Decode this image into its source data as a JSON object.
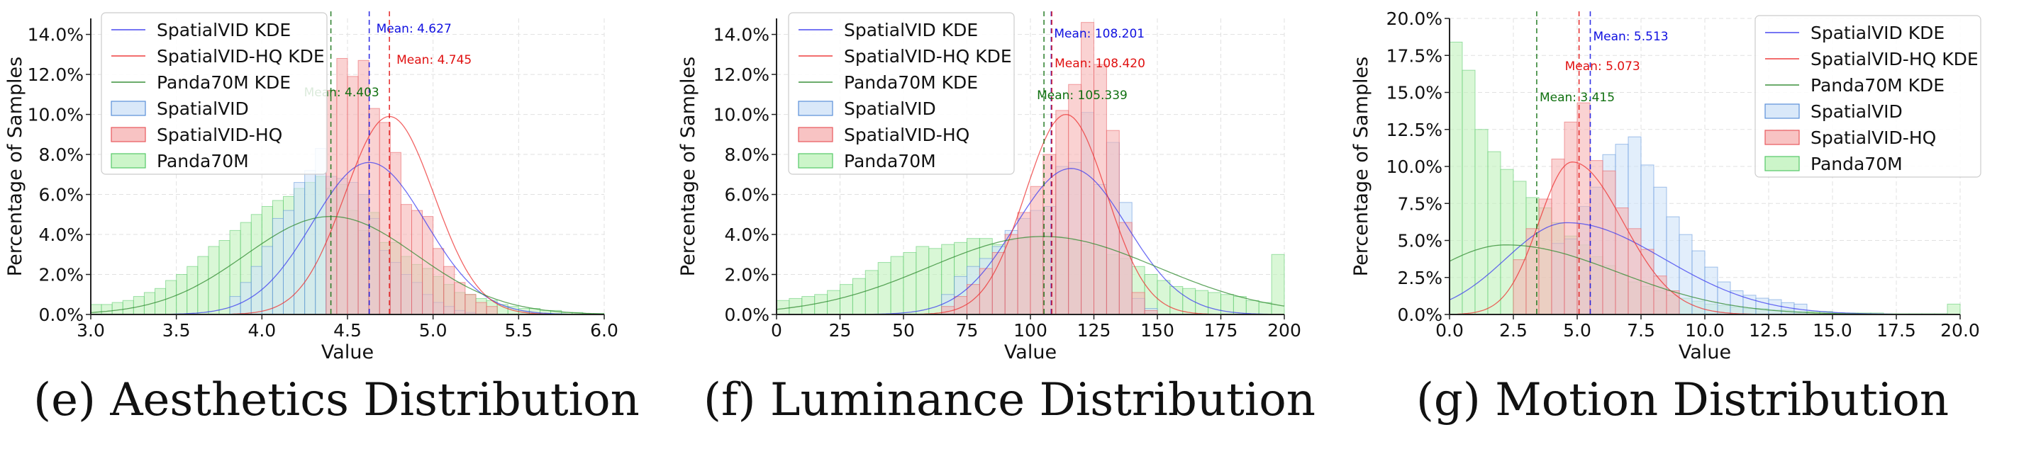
{
  "charts": [
    {
      "caption": "(e) Aesthetics Distribution",
      "chart_data": {
        "type": "histogram",
        "title": "",
        "xlabel": "Value",
        "ylabel": "Percentage of Samples",
        "xlim": [
          3.0,
          6.0
        ],
        "ylim": [
          0,
          14.8
        ],
        "xticks": [
          3.0,
          3.5,
          4.0,
          4.5,
          5.0,
          5.5,
          6.0
        ],
        "xtick_labels": [
          "3.0",
          "3.5",
          "4.0",
          "4.5",
          "5.0",
          "5.5",
          "6.0"
        ],
        "yticks": [
          0,
          2,
          4,
          6,
          8,
          10,
          12,
          14
        ],
        "ytick_labels": [
          "0.0%",
          "2.0%",
          "4.0%",
          "6.0%",
          "8.0%",
          "10.0%",
          "12.0%",
          "14.0%"
        ],
        "grid": true,
        "legend_position": "top-left",
        "legend": [
          "SpatialVID KDE",
          "SpatialVID-HQ KDE",
          "Panda70M KDE",
          "SpatialVID",
          "SpatialVID-HQ",
          "Panda70M"
        ],
        "series": [
          {
            "name": "SpatialVID",
            "mean": 4.627,
            "mean_label": "Mean: 4.627",
            "kde_peak": 7.6,
            "kde_sd": 0.33,
            "hist_range": [
              3.8,
              5.6
            ]
          },
          {
            "name": "SpatialVID-HQ",
            "mean": 4.745,
            "mean_label": "Mean: 4.745",
            "kde_peak": 9.9,
            "kde_sd": 0.26,
            "hist_range": [
              4.4,
              5.6
            ]
          },
          {
            "name": "Panda70M",
            "mean": 4.403,
            "mean_label": "Mean: 4.403",
            "kde_peak": 4.9,
            "kde_sd": 0.5,
            "hist_range": [
              3.0,
              6.0
            ]
          }
        ],
        "histograms": {
          "bin_start": 3.0,
          "bin_width": 0.0625,
          "SpatialVID": [
            0,
            0,
            0,
            0,
            0,
            0,
            0,
            0,
            0,
            0,
            0,
            0,
            0,
            0.9,
            1.6,
            2.4,
            3.4,
            4.8,
            5.2,
            6.6,
            7.2,
            8.3,
            6.9,
            6.8,
            6.6,
            6.0,
            4.8,
            3.2,
            2.6,
            2.0,
            1.6,
            1.0,
            0.6,
            0.4,
            0.2,
            0.1,
            0,
            0,
            0,
            0,
            0,
            0,
            0,
            0,
            0,
            0,
            0,
            0
          ],
          "SpatialVID-HQ": [
            0,
            0,
            0,
            0,
            0,
            0,
            0,
            0,
            0,
            0,
            0,
            0,
            0,
            0,
            0,
            0,
            0,
            0,
            0,
            0,
            0,
            0,
            11.2,
            12.8,
            11.9,
            12.7,
            10.3,
            9.6,
            8.1,
            5.5,
            5.2,
            4.9,
            3.3,
            2.4,
            1.6,
            1.0,
            0.6,
            0.4,
            0,
            0,
            0,
            0,
            0,
            0,
            0,
            0,
            0,
            0
          ],
          "Panda70M": [
            0.5,
            0.5,
            0.6,
            0.7,
            0.9,
            1.1,
            1.3,
            1.7,
            2.0,
            2.4,
            2.9,
            3.4,
            3.7,
            4.2,
            4.6,
            5.0,
            5.4,
            5.7,
            5.9,
            6.3,
            6.6,
            6.9,
            6.3,
            6.5,
            5.2,
            4.2,
            5.1,
            3.6,
            3.6,
            2.9,
            2.5,
            2.3,
            1.9,
            1.5,
            1.1,
            1.0,
            0.8,
            0.7,
            0.5,
            0.4,
            0.3,
            0.3,
            0.2,
            0.2,
            0.1,
            0.1,
            0.05,
            0.05
          ]
        }
      }
    },
    {
      "caption": "(f) Luminance Distribution",
      "chart_data": {
        "type": "histogram",
        "title": "",
        "xlabel": "Value",
        "ylabel": "Percentage of Samples",
        "xlim": [
          0,
          200
        ],
        "ylim": [
          0,
          14.8
        ],
        "xticks": [
          0,
          25,
          50,
          75,
          100,
          125,
          150,
          175,
          200
        ],
        "xtick_labels": [
          "0",
          "25",
          "50",
          "75",
          "100",
          "125",
          "150",
          "175",
          "200"
        ],
        "yticks": [
          0,
          2,
          4,
          6,
          8,
          10,
          12,
          14
        ],
        "ytick_labels": [
          "0.0%",
          "2.0%",
          "4.0%",
          "6.0%",
          "8.0%",
          "10.0%",
          "12.0%",
          "14.0%"
        ],
        "grid": true,
        "legend_position": "top-left",
        "legend": [
          "SpatialVID KDE",
          "SpatialVID-HQ KDE",
          "Panda70M KDE",
          "SpatialVID",
          "SpatialVID-HQ",
          "Panda70M"
        ],
        "series": [
          {
            "name": "SpatialVID",
            "mean": 108.201,
            "mean_label": "Mean: 108.201",
            "kde_peak": 7.3,
            "kde_sd": 22,
            "kde_center": 116,
            "hist_range": [
              62,
              150
            ]
          },
          {
            "name": "SpatialVID-HQ",
            "mean": 108.42,
            "mean_label": "Mean: 108.420",
            "kde_peak": 10.0,
            "kde_sd": 16,
            "kde_center": 114,
            "hist_range": [
              62,
              150
            ]
          },
          {
            "name": "Panda70M",
            "mean": 105.339,
            "mean_label": "Mean: 105.339",
            "kde_peak": 3.9,
            "kde_sd": 45,
            "kde_center": 105,
            "hist_range": [
              0,
              200
            ]
          }
        ],
        "histograms": {
          "bin_start": 0,
          "bin_width": 5,
          "SpatialVID": [
            0,
            0,
            0,
            0,
            0,
            0,
            0,
            0,
            0,
            0,
            0,
            0,
            0,
            1.0,
            1.9,
            2.4,
            2.8,
            3.4,
            4.2,
            4.8,
            5.2,
            5.4,
            7.4,
            7.6,
            10.1,
            6.5,
            8.6,
            5.6,
            0.8,
            0.3,
            0,
            0,
            0,
            0,
            0,
            0,
            0,
            0,
            0,
            0
          ],
          "SpatialVID-HQ": [
            0,
            0,
            0,
            0,
            0,
            0,
            0,
            0,
            0,
            0,
            0,
            0,
            0,
            0.4,
            0.9,
            1.5,
            2.3,
            3.1,
            4.0,
            5.1,
            6.4,
            8.0,
            10.2,
            11.5,
            14.6,
            12.5,
            9.2,
            4.6,
            1.1,
            0.2,
            0,
            0,
            0,
            0,
            0,
            0,
            0,
            0,
            0,
            0
          ],
          "Panda70M": [
            0.7,
            0.8,
            0.9,
            1.0,
            1.2,
            1.5,
            1.8,
            2.2,
            2.6,
            2.9,
            3.1,
            3.4,
            3.3,
            3.5,
            3.6,
            3.8,
            3.8,
            3.5,
            3.7,
            3.8,
            3.9,
            4.1,
            3.9,
            3.7,
            3.5,
            3.4,
            3.0,
            2.8,
            2.4,
            2.0,
            1.7,
            1.4,
            1.3,
            1.2,
            1.1,
            1.0,
            0.9,
            0.7,
            0.6,
            3.0
          ]
        }
      }
    },
    {
      "caption": "(g) Motion Distribution",
      "chart_data": {
        "type": "histogram",
        "title": "",
        "xlabel": "Value",
        "ylabel": "Percentage of Samples",
        "xlim": [
          0,
          20
        ],
        "ylim": [
          0,
          20
        ],
        "xticks": [
          0,
          2.5,
          5,
          7.5,
          10,
          12.5,
          15,
          17.5,
          20
        ],
        "xtick_labels": [
          "0.0",
          "2.5",
          "5.0",
          "7.5",
          "10.0",
          "12.5",
          "15.0",
          "17.5",
          "20.0"
        ],
        "yticks": [
          0,
          2.5,
          5,
          7.5,
          10,
          12.5,
          15,
          17.5,
          20
        ],
        "ytick_labels": [
          "0.0%",
          "2.5%",
          "5.0%",
          "7.5%",
          "10.0%",
          "12.5%",
          "15.0%",
          "17.5%",
          "20.0%"
        ],
        "grid": true,
        "legend_position": "top-right",
        "legend": [
          "SpatialVID KDE",
          "SpatialVID-HQ KDE",
          "Panda70M KDE",
          "SpatialVID",
          "SpatialVID-HQ",
          "Panda70M"
        ],
        "series": [
          {
            "name": "SpatialVID",
            "mean": 5.513,
            "mean_label": "Mean: 5.513",
            "kde_peak": 6.2,
            "kde_center": 4.6,
            "kde_sd_left": 2.4,
            "kde_sd_right": 3.8,
            "hist_range": [
              0,
              14
            ]
          },
          {
            "name": "SpatialVID-HQ",
            "mean": 5.073,
            "mean_label": "Mean: 5.073",
            "kde_peak": 10.3,
            "kde_center": 4.8,
            "kde_sd_left": 1.3,
            "kde_sd_right": 2.0,
            "hist_range": [
              2.5,
              9
            ]
          },
          {
            "name": "Panda70M",
            "mean": 3.415,
            "mean_label": "Mean: 3.415",
            "kde_peak": 4.7,
            "kde_center": 2.2,
            "kde_sd_left": 3.0,
            "kde_sd_right": 4.4,
            "hist_range": [
              0,
              20
            ]
          }
        ],
        "histograms": {
          "bin_start": 0,
          "bin_width": 0.5,
          "SpatialVID": [
            0,
            0,
            0,
            0,
            0,
            0,
            0,
            0,
            4.8,
            5.1,
            7.3,
            8.6,
            10.8,
            11.5,
            12.0,
            10.1,
            8.6,
            6.6,
            5.4,
            4.3,
            3.2,
            2.2,
            1.6,
            1.3,
            1.1,
            1.0,
            0.8,
            0.7,
            0,
            0,
            0,
            0,
            0,
            0,
            0,
            0,
            0,
            0,
            0,
            0
          ],
          "SpatialVID-HQ": [
            0,
            0,
            0,
            0,
            0,
            3.7,
            5.8,
            7.8,
            10.5,
            13.0,
            14.3,
            10.4,
            9.7,
            7.2,
            5.8,
            4.4,
            2.6,
            1.6,
            0,
            0,
            0,
            0,
            0,
            0,
            0,
            0,
            0,
            0,
            0,
            0,
            0,
            0,
            0,
            0,
            0,
            0,
            0,
            0,
            0,
            0
          ],
          "Panda70M": [
            18.4,
            16.5,
            12.5,
            11.0,
            9.8,
            9.0,
            7.9,
            7.2,
            6.2,
            5.3,
            4.7,
            3.9,
            3.3,
            2.7,
            2.2,
            1.9,
            1.6,
            1.3,
            1.1,
            0.9,
            0.7,
            0.6,
            0.5,
            0.4,
            0.4,
            0.3,
            0.3,
            0.2,
            0.2,
            0.2,
            0.1,
            0.1,
            0.1,
            0.1,
            0.05,
            0.05,
            0.05,
            0.05,
            0.05,
            0.7
          ]
        }
      }
    }
  ],
  "colors": {
    "SpatialVID": "#5a8fd8",
    "SpatialVID-HQ": "#e8585c",
    "Panda70M": "#55c868",
    "SpatialVID_fill": "#cfe2f8",
    "SpatialVID-HQ_fill": "#f6b4b4",
    "Panda70M_fill": "#bff2bb",
    "SpatialVID_kde": "#3c3cf0",
    "SpatialVID-HQ_kde": "#ee3030",
    "Panda70M_kde": "#2e8a2e",
    "SpatialVID_mean": "#1010e0",
    "SpatialVID-HQ_mean": "#e01010",
    "Panda70M_mean": "#107010",
    "grid": "#e1e1e1",
    "axis": "#222222"
  }
}
